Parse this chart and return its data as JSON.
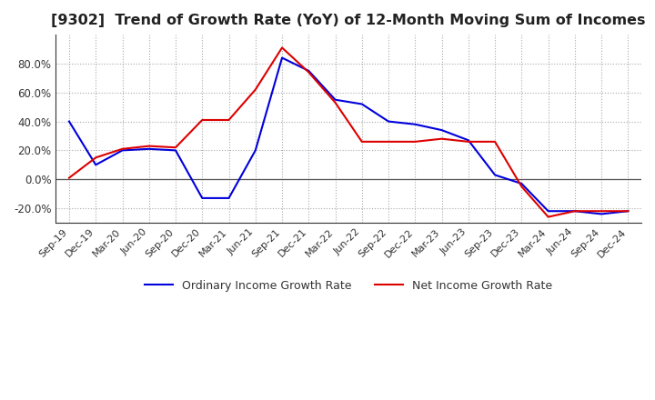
{
  "title": "[9302]  Trend of Growth Rate (YoY) of 12-Month Moving Sum of Incomes",
  "title_fontsize": 11.5,
  "background_color": "#ffffff",
  "grid_color": "#aaaaaa",
  "x_labels": [
    "Sep-19",
    "Dec-19",
    "Mar-20",
    "Jun-20",
    "Sep-20",
    "Dec-20",
    "Mar-21",
    "Jun-21",
    "Sep-21",
    "Dec-21",
    "Mar-22",
    "Jun-22",
    "Sep-22",
    "Dec-22",
    "Mar-23",
    "Jun-23",
    "Sep-23",
    "Dec-23",
    "Mar-24",
    "Jun-24",
    "Sep-24",
    "Dec-24"
  ],
  "ordinary_income": [
    0.4,
    0.1,
    0.2,
    0.21,
    0.2,
    -0.13,
    -0.13,
    0.2,
    0.84,
    0.75,
    0.55,
    0.52,
    0.4,
    0.38,
    0.34,
    0.27,
    0.03,
    -0.03,
    -0.22,
    -0.22,
    -0.24,
    -0.22
  ],
  "net_income": [
    0.01,
    0.15,
    0.21,
    0.23,
    0.22,
    0.41,
    0.41,
    0.62,
    0.91,
    0.74,
    0.53,
    0.26,
    0.26,
    0.26,
    0.28,
    0.26,
    0.26,
    -0.05,
    -0.26,
    -0.22,
    -0.22,
    -0.22
  ],
  "ordinary_color": "#0000dd",
  "net_color": "#dd0000",
  "ylim": [
    -0.3,
    1.0
  ],
  "yticks": [
    -0.2,
    0.0,
    0.2,
    0.4,
    0.6,
    0.8
  ],
  "legend_labels": [
    "Ordinary Income Growth Rate",
    "Net Income Growth Rate"
  ]
}
